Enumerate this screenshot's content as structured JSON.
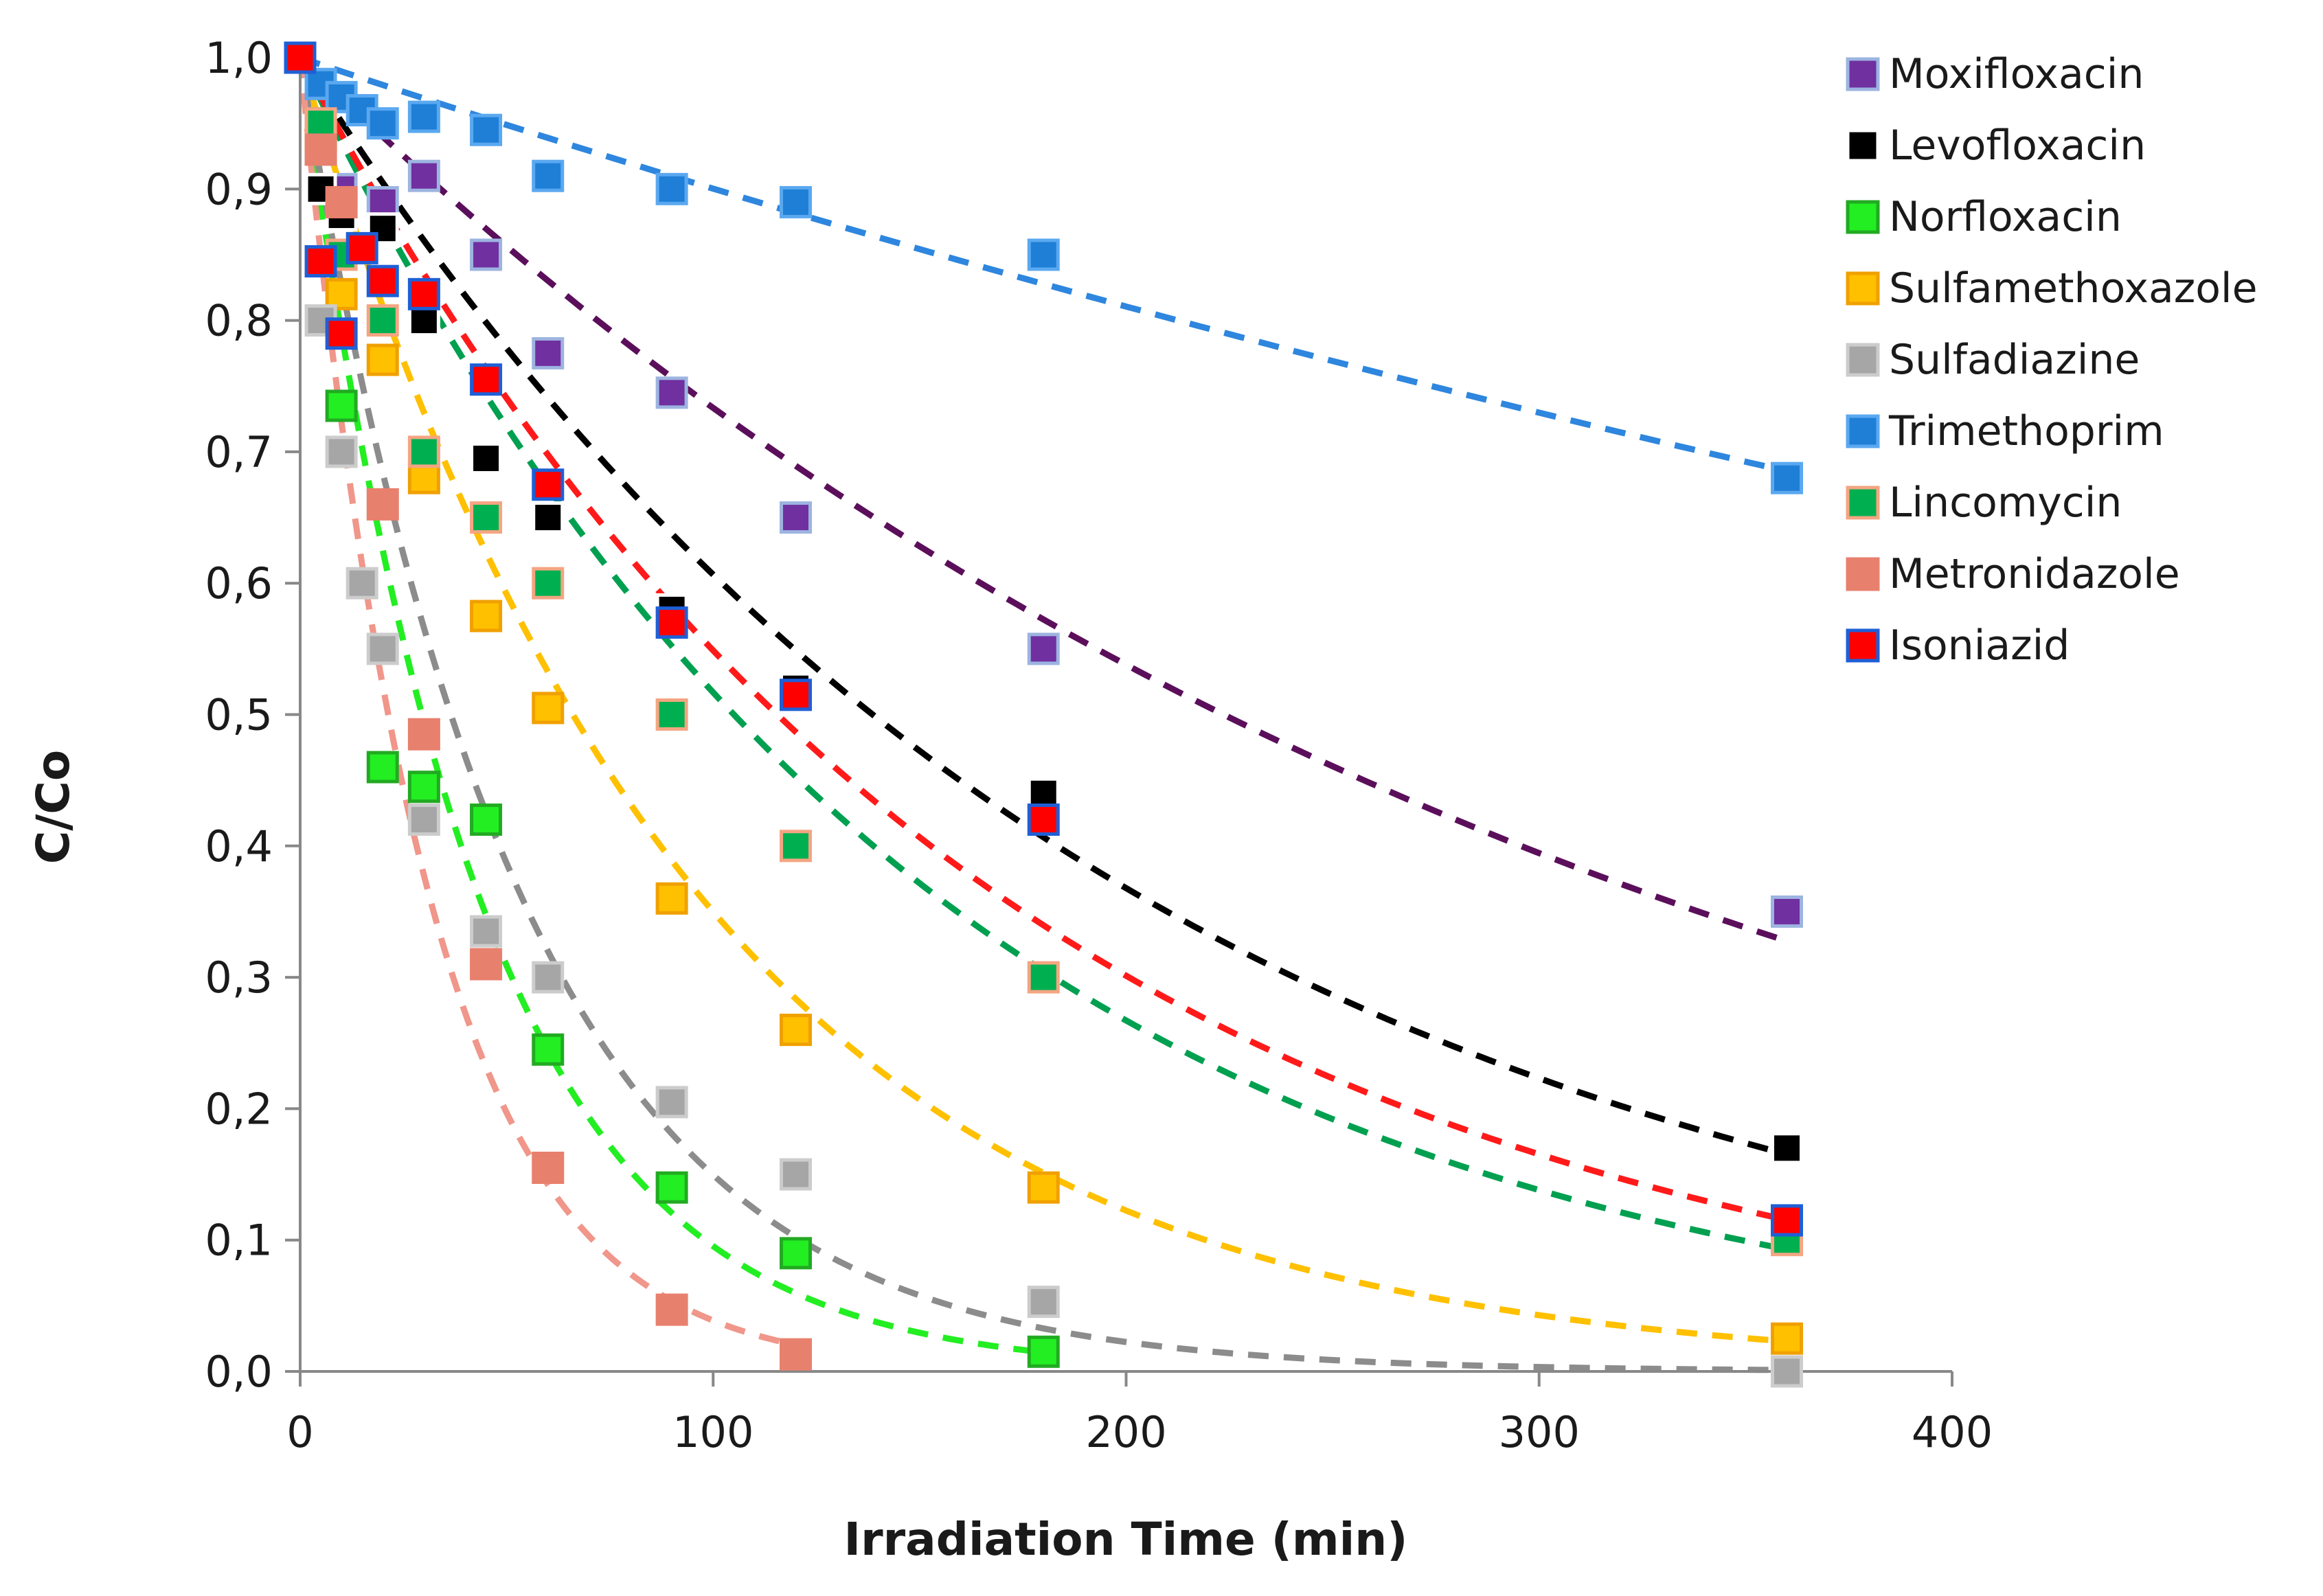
{
  "chart_data": {
    "type": "scatter",
    "xlabel": "Irradiation Time (min)",
    "ylabel": "C/Co",
    "xlim": [
      0,
      400
    ],
    "ylim": [
      0.0,
      1.0
    ],
    "x_ticks": [
      0,
      100,
      200,
      300,
      400
    ],
    "x_tick_labels": [
      "0",
      "100",
      "200",
      "300",
      "400"
    ],
    "y_ticks": [
      0.0,
      0.1,
      0.2,
      0.3,
      0.4,
      0.5,
      0.6,
      0.7,
      0.8,
      0.9,
      1.0
    ],
    "y_tick_labels": [
      "0,0",
      "0,1",
      "0,2",
      "0,3",
      "0,4",
      "0,5",
      "0,6",
      "0,7",
      "0,8",
      "0,9",
      "1,0"
    ],
    "grid": false,
    "legend_position": "top-right",
    "fit_lines": "dashed exponential decay per series",
    "series": [
      {
        "name": "Moxifloxacin",
        "color": "#7030a0",
        "line_color": "#5b0f5b",
        "border": "#9db4e0",
        "x": [
          0,
          5,
          10,
          20,
          30,
          45,
          60,
          90,
          120,
          180,
          360
        ],
        "y": [
          1.0,
          0.93,
          0.9,
          0.89,
          0.91,
          0.85,
          0.775,
          0.745,
          0.65,
          0.55,
          0.35
        ],
        "k": 0.0031
      },
      {
        "name": "Levofloxacin",
        "color": "#000000",
        "line_color": "#000000",
        "border": "#ffffff",
        "x": [
          0,
          5,
          10,
          20,
          30,
          45,
          60,
          90,
          120,
          180,
          360
        ],
        "y": [
          1.0,
          0.9,
          0.88,
          0.87,
          0.8,
          0.695,
          0.65,
          0.58,
          0.52,
          0.44,
          0.17
        ],
        "k": 0.005
      },
      {
        "name": "Norfloxacin",
        "color": "#22ee22",
        "line_color": "#22ee22",
        "border": "#22aa22",
        "x": [
          0,
          5,
          10,
          20,
          30,
          45,
          60,
          90,
          120,
          180
        ],
        "y": [
          1.0,
          0.95,
          0.735,
          0.46,
          0.445,
          0.42,
          0.245,
          0.14,
          0.09,
          0.015
        ],
        "k": 0.0235
      },
      {
        "name": "Sulfamethoxazole",
        "color": "#ffc000",
        "line_color": "#ffc000",
        "border": "#f0a000",
        "x": [
          0,
          5,
          10,
          20,
          30,
          45,
          60,
          90,
          120,
          180,
          360
        ],
        "y": [
          1.0,
          0.94,
          0.82,
          0.77,
          0.68,
          0.575,
          0.505,
          0.36,
          0.26,
          0.14,
          0.025
        ],
        "k": 0.0105
      },
      {
        "name": "Sulfadiazine",
        "color": "#a6a6a6",
        "line_color": "#8c8c8c",
        "border": "#cccccc",
        "x": [
          0,
          5,
          10,
          15,
          20,
          30,
          45,
          60,
          90,
          120,
          180,
          360
        ],
        "y": [
          1.0,
          0.8,
          0.7,
          0.6,
          0.55,
          0.42,
          0.335,
          0.3,
          0.205,
          0.15,
          0.053,
          0.0
        ],
        "k": 0.019
      },
      {
        "name": "Trimethoprim",
        "color": "#1f7fd6",
        "line_color": "#2e86de",
        "border": "#5aa8f0",
        "x": [
          0,
          5,
          10,
          15,
          20,
          30,
          45,
          60,
          90,
          120,
          180,
          360
        ],
        "y": [
          1.0,
          0.98,
          0.97,
          0.96,
          0.95,
          0.955,
          0.945,
          0.91,
          0.9,
          0.89,
          0.85,
          0.68
        ],
        "k": 0.00105
      },
      {
        "name": "Lincomycin",
        "color": "#00b050",
        "line_color": "#00a050",
        "border": "#f4a582",
        "x": [
          0,
          5,
          10,
          20,
          30,
          45,
          60,
          90,
          120,
          180,
          360
        ],
        "y": [
          1.0,
          0.95,
          0.85,
          0.8,
          0.7,
          0.65,
          0.6,
          0.5,
          0.4,
          0.3,
          0.1
        ],
        "k": 0.0066
      },
      {
        "name": "Metronidazole",
        "color": "#e8806e",
        "line_color": "#f0968a",
        "border": "#e8806e",
        "x": [
          0,
          5,
          10,
          20,
          30,
          45,
          60,
          90,
          120
        ],
        "y": [
          1.0,
          0.93,
          0.89,
          0.66,
          0.485,
          0.31,
          0.155,
          0.047,
          0.013
        ],
        "k": 0.0325
      },
      {
        "name": "Isoniazid",
        "color": "#ff0000",
        "line_color": "#ff1a1a",
        "border": "#1f5fd6",
        "x": [
          0,
          5,
          10,
          15,
          20,
          30,
          45,
          60,
          90,
          120,
          180,
          360
        ],
        "y": [
          1.0,
          0.845,
          0.79,
          0.855,
          0.83,
          0.82,
          0.755,
          0.675,
          0.57,
          0.515,
          0.42,
          0.115
        ],
        "k": 0.006
      }
    ]
  }
}
